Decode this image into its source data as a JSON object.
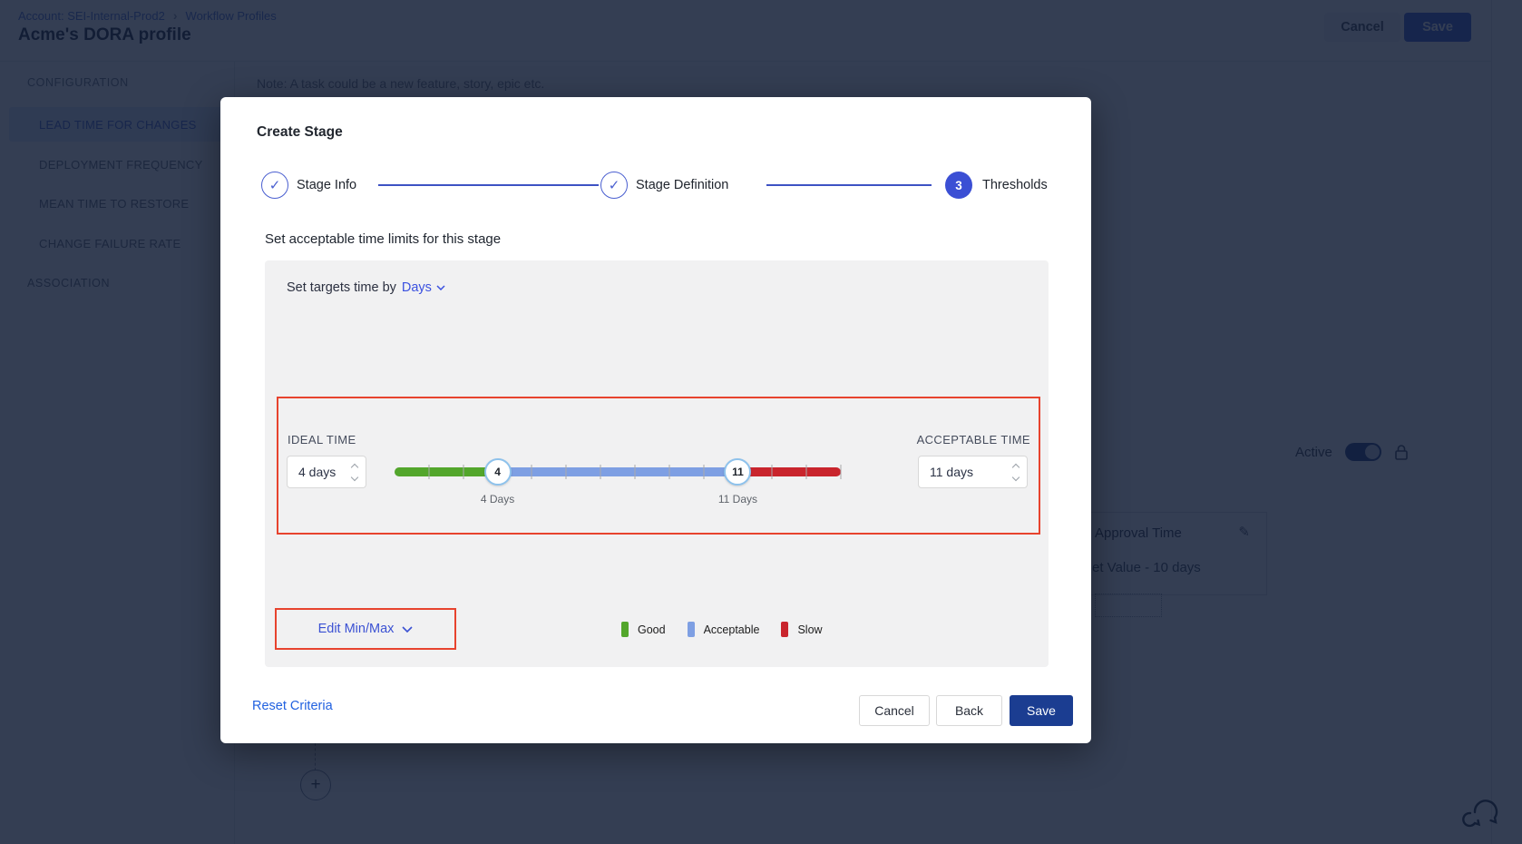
{
  "colors": {
    "red_outline": "#e7432e",
    "primary_blue": "#3b4fd4",
    "save_button": "#1b3d91",
    "link_blue": "#2161e0",
    "handle_border": "#8ec2ec",
    "overlay": "rgba(17,28,53,0.85)"
  },
  "background": {
    "breadcrumb": {
      "account": "Account: SEI-Internal-Prod2",
      "separator": "›",
      "page": "Workflow Profiles"
    },
    "title": "Acme's DORA profile",
    "header_actions": {
      "cancel": "Cancel",
      "save": "Save"
    },
    "sidebar": {
      "section": "CONFIGURATION",
      "items": [
        "LEAD TIME FOR CHANGES",
        "DEPLOYMENT FREQUENCY",
        "MEAN TIME TO RESTORE",
        "CHANGE FAILURE RATE"
      ],
      "selected_item": "LEAD TIME FOR CHANGES",
      "footer_item": "ASSOCIATION"
    },
    "note": "Note: A task could be a new feature, story, epic etc.",
    "active_toggle_label": "Active",
    "card": {
      "title": "Approval Time",
      "pencil_icon": "✎",
      "value_visible": "et Value - 10 days"
    },
    "add_button": "+"
  },
  "modal": {
    "title": "Create Stage",
    "stepper": [
      {
        "label": "Stage Info",
        "state": "done",
        "check": "✓"
      },
      {
        "label": "Stage Definition",
        "state": "done",
        "check": "✓"
      },
      {
        "label": "Thresholds",
        "state": "current",
        "number": "3"
      }
    ],
    "subtitle": "Set acceptable time limits for this stage",
    "panel": {
      "target_prefix": "Set targets time by",
      "target_unit": "Days",
      "ideal": {
        "label": "IDEAL TIME",
        "value": "4 days"
      },
      "acceptable": {
        "label": "ACCEPTABLE TIME",
        "value": "11 days"
      },
      "slider": {
        "min": 1,
        "max": 14,
        "ideal": 4,
        "acceptable": 11,
        "ideal_label": "4 Days",
        "acceptable_label": "11 Days"
      },
      "edit_minmax": "Edit Min/Max",
      "legend": [
        {
          "label": "Good",
          "color": "#53a62c"
        },
        {
          "label": "Acceptable",
          "color": "#7e9fe3"
        },
        {
          "label": "Slow",
          "color": "#c9252d"
        }
      ]
    },
    "footer": {
      "reset": "Reset Criteria",
      "cancel": "Cancel",
      "back": "Back",
      "save": "Save"
    }
  }
}
